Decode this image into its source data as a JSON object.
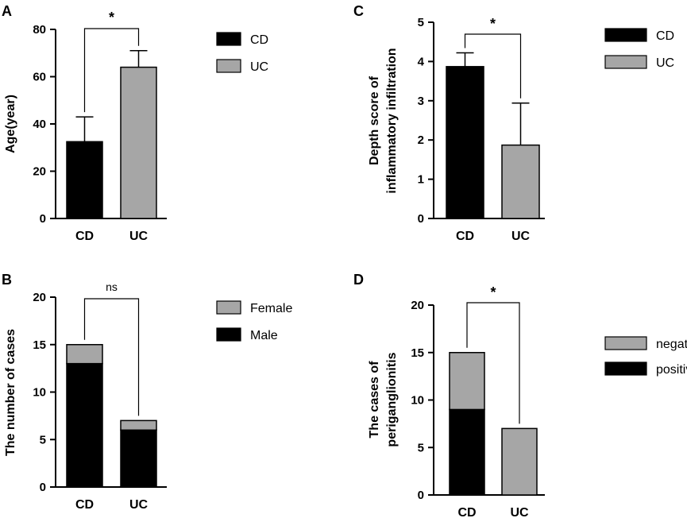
{
  "chart_data": [
    {
      "panel": "A",
      "type": "bar",
      "ylabel": "Age(year)",
      "ylim": [
        0,
        80
      ],
      "yticks": [
        0,
        20,
        40,
        60,
        80
      ],
      "categories": [
        "CD",
        "UC"
      ],
      "values": [
        32.5,
        64
      ],
      "errors": [
        10.5,
        7
      ],
      "colors": [
        "#000000",
        "#a6a6a6"
      ],
      "legend": [
        {
          "label": "CD",
          "color": "#000000"
        },
        {
          "label": "UC",
          "color": "#a6a6a6"
        }
      ],
      "significance": "*"
    },
    {
      "panel": "B",
      "type": "bar",
      "stacked": true,
      "ylabel": "The number of cases",
      "ylim": [
        0,
        20
      ],
      "yticks": [
        0,
        5,
        10,
        15,
        20
      ],
      "categories": [
        "CD",
        "UC"
      ],
      "series": [
        {
          "name": "Male",
          "values": [
            13,
            6
          ],
          "color": "#000000"
        },
        {
          "name": "Female",
          "values": [
            2,
            1
          ],
          "color": "#a6a6a6"
        }
      ],
      "legend": [
        {
          "label": "Female",
          "color": "#a6a6a6"
        },
        {
          "label": "Male",
          "color": "#000000"
        }
      ],
      "significance": "ns"
    },
    {
      "panel": "C",
      "type": "bar",
      "ylabel": [
        "Depth score of",
        "inflammatory infiltration"
      ],
      "ylim": [
        0,
        5
      ],
      "yticks": [
        0,
        1,
        2,
        3,
        4,
        5
      ],
      "categories": [
        "CD",
        "UC"
      ],
      "values": [
        3.87,
        1.87
      ],
      "errors": [
        0.35,
        1.07
      ],
      "colors": [
        "#000000",
        "#a6a6a6"
      ],
      "legend": [
        {
          "label": "CD",
          "color": "#000000"
        },
        {
          "label": "UC",
          "color": "#a6a6a6"
        }
      ],
      "significance": "*"
    },
    {
      "panel": "D",
      "type": "bar",
      "stacked": true,
      "ylabel": [
        "The cases of",
        "periganglionitis"
      ],
      "ylim": [
        0,
        20
      ],
      "yticks": [
        0,
        5,
        10,
        15,
        20
      ],
      "categories": [
        "CD",
        "UC"
      ],
      "series": [
        {
          "name": "positive",
          "values": [
            9,
            0
          ],
          "color": "#000000"
        },
        {
          "name": "negative",
          "values": [
            6,
            7
          ],
          "color": "#a6a6a6"
        }
      ],
      "legend": [
        {
          "label": "negative",
          "color": "#a6a6a6"
        },
        {
          "label": "positive",
          "color": "#000000"
        }
      ],
      "significance": "*"
    }
  ]
}
